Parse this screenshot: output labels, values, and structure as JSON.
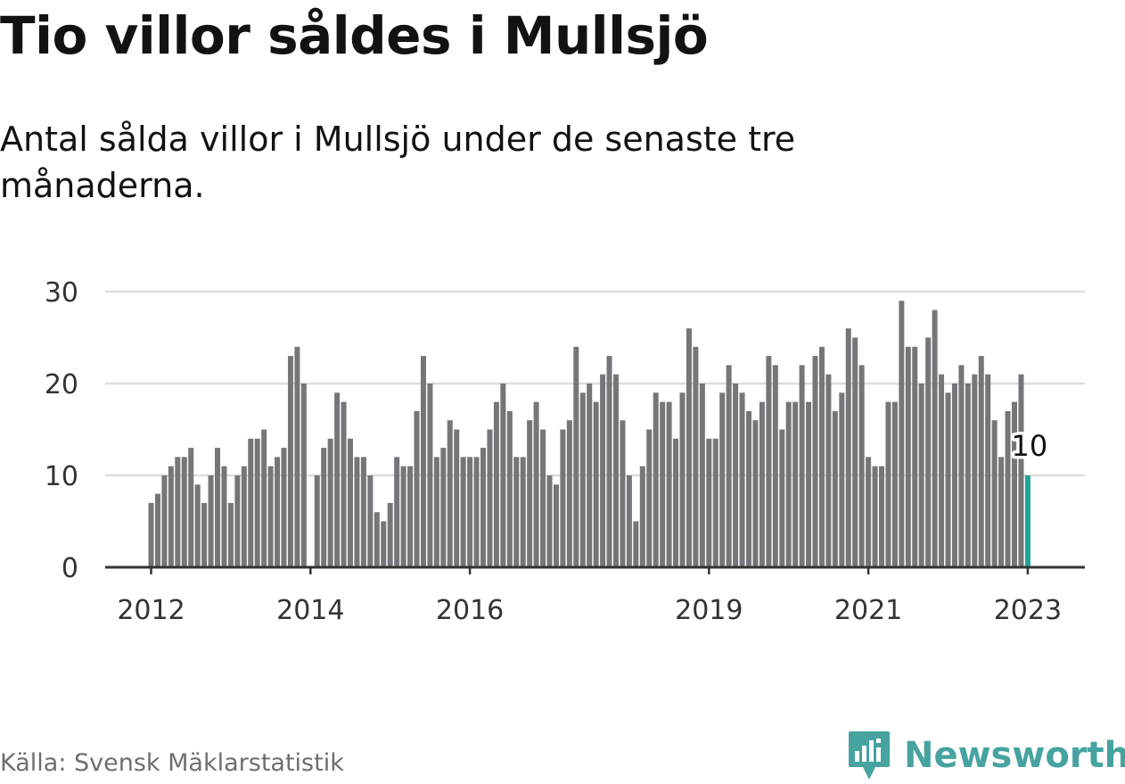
{
  "title": "Tio villor såldes i Mullsjö",
  "subtitle": "Antal sålda villor i Mullsjö under de senaste tre månaderna.",
  "source": "Källa: Svensk Mäklarstatistik",
  "brand": {
    "name": "Newsworthy",
    "icon": "newsworthy-logo-icon",
    "color": "#46a3a0"
  },
  "colors": {
    "bar": "#76757a",
    "highlight": "#1fa39b",
    "grid": "#dddddd",
    "axis": "#333333",
    "text": "#333333"
  },
  "chart_data": {
    "type": "bar",
    "title": "Tio villor såldes i Mullsjö",
    "xlabel": "",
    "ylabel": "",
    "ylim": [
      0,
      30
    ],
    "y_ticks": [
      "0",
      "10",
      "20",
      "30"
    ],
    "y_tick_values": [
      0,
      10,
      20,
      30
    ],
    "x_ticks": [
      {
        "label": "2012",
        "index": 0
      },
      {
        "label": "2014",
        "index": 24
      },
      {
        "label": "2016",
        "index": 48
      },
      {
        "label": "2019",
        "index": 84
      },
      {
        "label": "2021",
        "index": 108
      },
      {
        "label": "2023",
        "index": 132
      }
    ],
    "start": "2012-01",
    "period": "monthly",
    "values": [
      7,
      8,
      10,
      11,
      12,
      12,
      13,
      9,
      7,
      10,
      13,
      11,
      7,
      10,
      11,
      14,
      14,
      15,
      11,
      12,
      13,
      23,
      24,
      20,
      0,
      10,
      13,
      14,
      19,
      18,
      14,
      12,
      12,
      10,
      6,
      5,
      7,
      12,
      11,
      11,
      17,
      23,
      20,
      12,
      13,
      16,
      15,
      12,
      12,
      12,
      13,
      15,
      18,
      20,
      17,
      12,
      12,
      16,
      18,
      15,
      10,
      9,
      15,
      16,
      24,
      19,
      20,
      18,
      21,
      23,
      21,
      16,
      10,
      5,
      11,
      15,
      19,
      18,
      18,
      14,
      19,
      26,
      24,
      20,
      14,
      14,
      19,
      22,
      20,
      19,
      17,
      16,
      18,
      23,
      22,
      15,
      18,
      18,
      22,
      18,
      23,
      24,
      21,
      17,
      19,
      26,
      25,
      22,
      12,
      11,
      11,
      18,
      18,
      29,
      24,
      24,
      20,
      25,
      28,
      21,
      19,
      20,
      22,
      20,
      21,
      23,
      21,
      16,
      12,
      17,
      18,
      21,
      10
    ],
    "highlight_index": 132,
    "highlight_label": "10"
  }
}
